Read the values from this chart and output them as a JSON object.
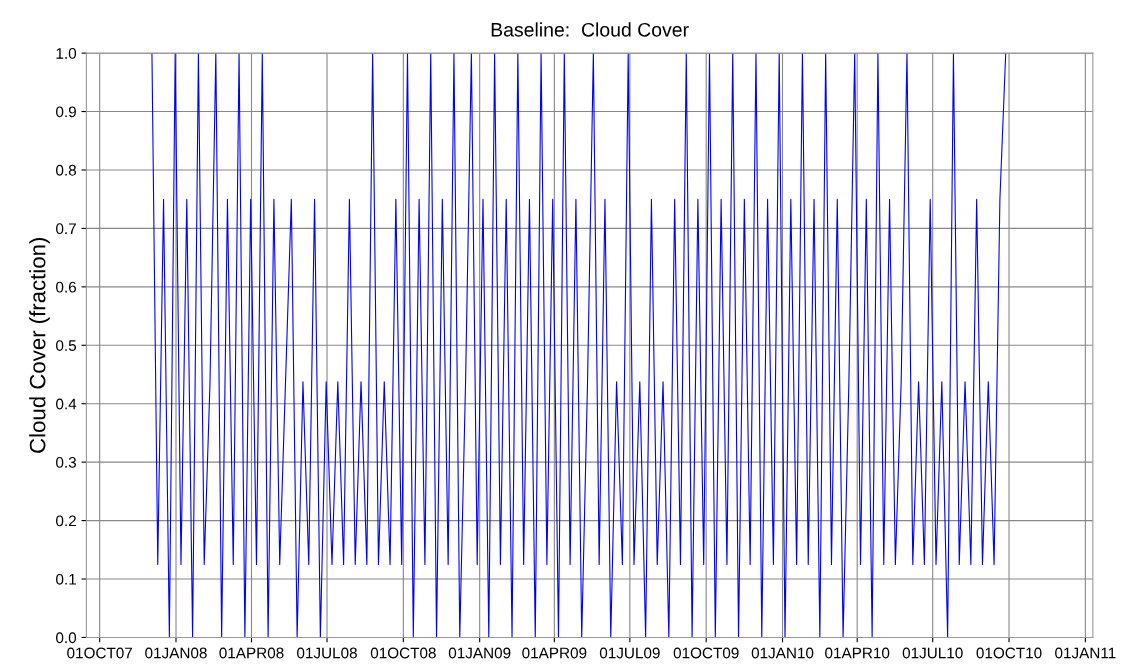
{
  "chart_data": {
    "type": "line",
    "title": "Baseline:  Cloud Cover",
    "ylabel": "Cloud Cover (fraction)",
    "x": [
      "2007-12-03",
      "2007-12-10",
      "2007-12-17",
      "2007-12-24",
      "2007-12-31",
      "2008-01-07",
      "2008-01-14",
      "2008-01-21",
      "2008-01-28",
      "2008-02-04",
      "2008-02-11",
      "2008-02-18",
      "2008-02-25",
      "2008-03-03",
      "2008-03-10",
      "2008-03-17",
      "2008-03-24",
      "2008-03-31",
      "2008-04-07",
      "2008-04-14",
      "2008-04-21",
      "2008-04-28",
      "2008-05-05",
      "2008-05-12",
      "2008-05-19",
      "2008-05-26",
      "2008-06-02",
      "2008-06-09",
      "2008-06-16",
      "2008-06-23",
      "2008-06-30",
      "2008-07-07",
      "2008-07-14",
      "2008-07-21",
      "2008-07-28",
      "2008-08-04",
      "2008-08-11",
      "2008-08-18",
      "2008-08-25",
      "2008-09-01",
      "2008-09-08",
      "2008-09-15",
      "2008-09-22",
      "2008-09-29",
      "2008-10-06",
      "2008-10-13",
      "2008-10-20",
      "2008-10-27",
      "2008-11-03",
      "2008-11-10",
      "2008-11-17",
      "2008-11-24",
      "2008-12-01",
      "2008-12-08",
      "2008-12-15",
      "2008-12-22",
      "2008-12-29",
      "2009-01-05",
      "2009-01-12",
      "2009-01-19",
      "2009-01-26",
      "2009-02-02",
      "2009-02-09",
      "2009-02-16",
      "2009-02-23",
      "2009-03-02",
      "2009-03-09",
      "2009-03-16",
      "2009-03-23",
      "2009-03-30",
      "2009-04-06",
      "2009-04-13",
      "2009-04-20",
      "2009-04-27",
      "2009-05-04",
      "2009-05-11",
      "2009-05-18",
      "2009-05-25",
      "2009-06-01",
      "2009-06-08",
      "2009-06-15",
      "2009-06-22",
      "2009-06-29",
      "2009-07-06",
      "2009-07-13",
      "2009-07-20",
      "2009-07-27",
      "2009-08-03",
      "2009-08-10",
      "2009-08-17",
      "2009-08-24",
      "2009-08-31",
      "2009-09-07",
      "2009-09-14",
      "2009-09-21",
      "2009-09-28",
      "2009-10-05",
      "2009-10-12",
      "2009-10-19",
      "2009-10-26",
      "2009-11-02",
      "2009-11-09",
      "2009-11-16",
      "2009-11-23",
      "2009-11-30",
      "2009-12-07",
      "2009-12-14",
      "2009-12-21",
      "2009-12-28",
      "2010-01-04",
      "2010-01-11",
      "2010-01-18",
      "2010-01-25",
      "2010-02-01",
      "2010-02-08",
      "2010-02-15",
      "2010-02-22",
      "2010-03-01",
      "2010-03-08",
      "2010-03-15",
      "2010-03-22",
      "2010-03-29",
      "2010-04-05",
      "2010-04-12",
      "2010-04-19",
      "2010-04-26",
      "2010-05-03",
      "2010-05-10",
      "2010-05-17",
      "2010-05-24",
      "2010-05-31",
      "2010-06-07",
      "2010-06-14",
      "2010-06-21",
      "2010-06-28",
      "2010-07-05",
      "2010-07-12",
      "2010-07-19",
      "2010-07-26",
      "2010-08-02",
      "2010-08-09",
      "2010-08-16",
      "2010-08-23",
      "2010-08-30",
      "2010-09-06",
      "2010-09-13",
      "2010-09-20",
      "2010-09-27"
    ],
    "series": [
      {
        "color": "#0000ff",
        "values": [
          1,
          0.125,
          0.75,
          0,
          1,
          0.125,
          0.75,
          0,
          1,
          0.125,
          0.4375,
          1,
          0,
          0.75,
          0.125,
          1,
          0,
          0.75,
          0.125,
          1,
          0,
          0.75,
          0.125,
          0.4375,
          0.75,
          0,
          0.4375,
          0.125,
          0.75,
          0,
          0.4375,
          0.125,
          0.4375,
          0.125,
          0.75,
          0.125,
          0.4375,
          0.125,
          1,
          0.125,
          0.4375,
          0.125,
          0.75,
          0.125,
          1,
          0,
          0.75,
          0.125,
          1,
          0,
          0.75,
          0.125,
          1,
          0,
          0.4375,
          1,
          0.125,
          0.75,
          0,
          1,
          0.125,
          0.75,
          0,
          1,
          0.125,
          0.75,
          0,
          1,
          0.125,
          0.75,
          0,
          1,
          0.125,
          0.75,
          0,
          0.4375,
          1,
          0.125,
          0.75,
          0,
          0.4375,
          0.125,
          1,
          0.125,
          0.4375,
          0,
          0.75,
          0.125,
          0.4375,
          0,
          0.75,
          0.125,
          1,
          0,
          0.75,
          0.125,
          1,
          0,
          0.75,
          0.125,
          1,
          0,
          0.75,
          0.125,
          1,
          0,
          0.75,
          0.125,
          1,
          0,
          0.75,
          0.125,
          1,
          0.125,
          0.75,
          0,
          1,
          0.125,
          0.75,
          0,
          0.4375,
          1,
          0.125,
          0.75,
          0,
          1,
          0.125,
          0.75,
          0.125,
          0.4375,
          1,
          0.125,
          0.4375,
          0.125,
          0.75,
          0.125,
          0.4375,
          0,
          1,
          0.125,
          0.4375,
          0.125,
          0.75,
          0.125,
          0.4375,
          0.125,
          0.75,
          1
        ]
      }
    ],
    "xlim": [
      "2007-09-15",
      "2011-01-10"
    ],
    "xticks": [
      {
        "value": "2007-10-01",
        "label": "01OCT07"
      },
      {
        "value": "2008-01-01",
        "label": "01JAN08"
      },
      {
        "value": "2008-04-01",
        "label": "01APR08"
      },
      {
        "value": "2008-07-01",
        "label": "01JUL08"
      },
      {
        "value": "2008-10-01",
        "label": "01OCT08"
      },
      {
        "value": "2009-01-01",
        "label": "01JAN09"
      },
      {
        "value": "2009-04-01",
        "label": "01APR09"
      },
      {
        "value": "2009-07-01",
        "label": "01JUL09"
      },
      {
        "value": "2009-10-01",
        "label": "01OCT09"
      },
      {
        "value": "2010-01-01",
        "label": "01JAN10"
      },
      {
        "value": "2010-04-01",
        "label": "01APR10"
      },
      {
        "value": "2010-07-01",
        "label": "01JUL10"
      },
      {
        "value": "2010-10-01",
        "label": "01OCT10"
      },
      {
        "value": "2011-01-01",
        "label": "01JAN11"
      }
    ],
    "ylim": [
      0,
      1
    ],
    "yticks": [
      {
        "value": 0,
        "label": "0.0"
      },
      0.1,
      0.2,
      0.3,
      0.4,
      0.5,
      0.6,
      0.7,
      0.8,
      0.9,
      {
        "value": 1,
        "label": "1.0"
      }
    ],
    "grid": true,
    "marker": "none",
    "line_style": "solid"
  }
}
